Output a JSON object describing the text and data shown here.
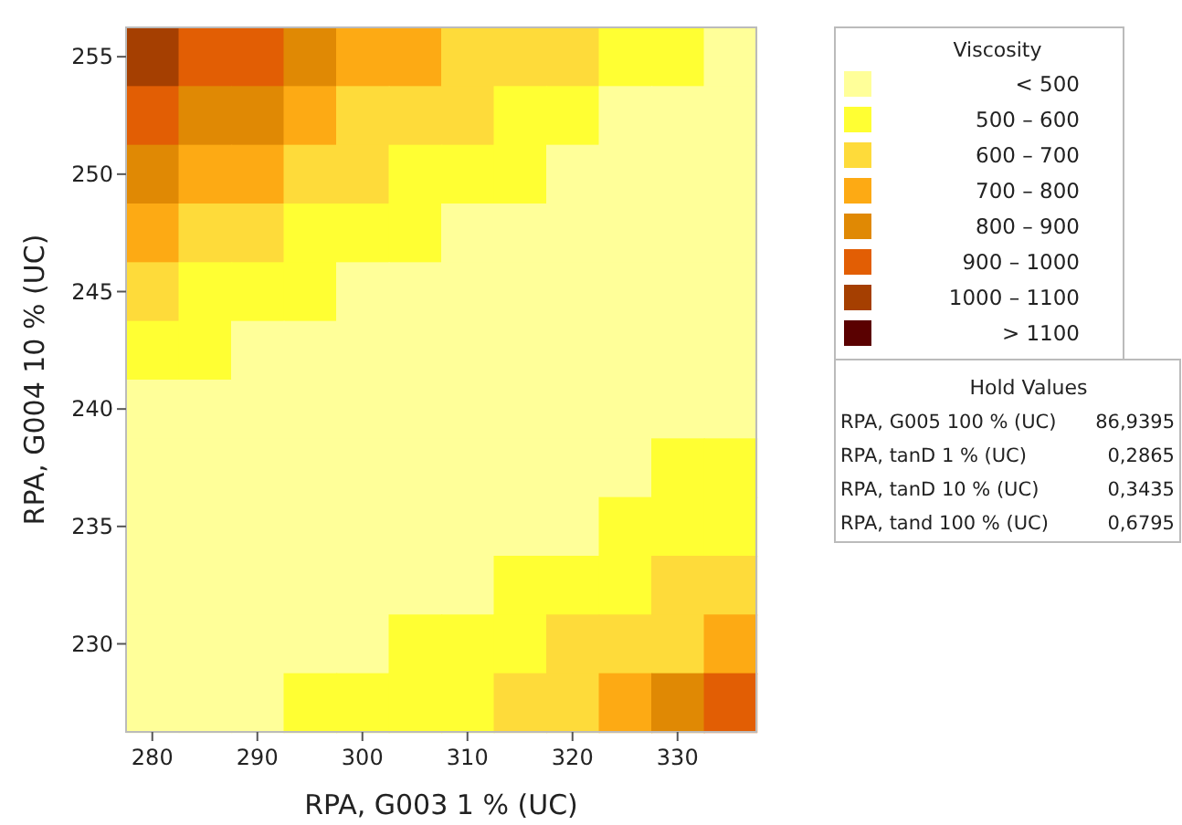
{
  "chart_data": {
    "type": "heatmap",
    "xlabel": "RPA, G003 1 % (UC)",
    "ylabel": "RPA, G004 10 % (UC)",
    "legend_title": "Viscosity",
    "categories": [
      "280",
      null,
      "290",
      null,
      "300",
      null,
      "310",
      null,
      "320",
      null,
      "330",
      null
    ],
    "y_categories": [
      "255",
      null,
      "250",
      null,
      "245",
      null,
      "240",
      null,
      "235",
      null,
      "230",
      null
    ],
    "clim": [
      400,
      1200
    ],
    "cticks": [
      {
        "value": 450,
        "label": "< 500"
      },
      {
        "value": 550,
        "label": "500 – 600"
      },
      {
        "value": 650,
        "label": "600 – 700"
      },
      {
        "value": 750,
        "label": "700 – 800"
      },
      {
        "value": 850,
        "label": "800 – 900"
      },
      {
        "value": 950,
        "label": "900 – 1000"
      },
      {
        "value": 1050,
        "label": "1000 – 1100"
      },
      {
        "value": 1150,
        "label": "> 1100"
      }
    ],
    "colors": [
      "#ffff99",
      "#ffff33",
      "#fedb3a",
      "#fdaa14",
      "#e08904",
      "#e25e04",
      "#a53f01",
      "#5a0101"
    ],
    "cells": [
      [
        1050,
        950,
        950,
        850,
        750,
        750,
        650,
        650,
        650,
        550,
        550,
        450
      ],
      [
        950,
        850,
        850,
        750,
        650,
        650,
        650,
        550,
        550,
        450,
        450,
        450
      ],
      [
        850,
        750,
        750,
        650,
        650,
        550,
        550,
        550,
        450,
        450,
        450,
        450
      ],
      [
        750,
        650,
        650,
        550,
        550,
        550,
        450,
        450,
        450,
        450,
        450,
        450
      ],
      [
        650,
        550,
        550,
        550,
        450,
        450,
        450,
        450,
        450,
        450,
        450,
        450
      ],
      [
        550,
        550,
        450,
        450,
        450,
        450,
        450,
        450,
        450,
        450,
        450,
        450
      ],
      [
        450,
        450,
        450,
        450,
        450,
        450,
        450,
        450,
        450,
        450,
        450,
        450
      ],
      [
        450,
        450,
        450,
        450,
        450,
        450,
        450,
        450,
        450,
        450,
        550,
        550
      ],
      [
        450,
        450,
        450,
        450,
        450,
        450,
        450,
        450,
        450,
        550,
        550,
        550
      ],
      [
        450,
        450,
        450,
        450,
        450,
        450,
        450,
        550,
        550,
        550,
        650,
        650
      ],
      [
        450,
        450,
        450,
        450,
        450,
        550,
        550,
        550,
        650,
        650,
        650,
        750
      ],
      [
        450,
        450,
        450,
        550,
        550,
        550,
        550,
        650,
        650,
        750,
        850,
        950
      ]
    ],
    "annotations": [
      "Hold Values",
      "RPA, G005 100 % (UC)\t86,9395",
      "RPA, tanD 1 % (UC)\t0,2865",
      "RPA, tanD 10 % (UC)\t0,3435",
      "RPA, tand 100 % (UC)\t0,6795"
    ]
  }
}
